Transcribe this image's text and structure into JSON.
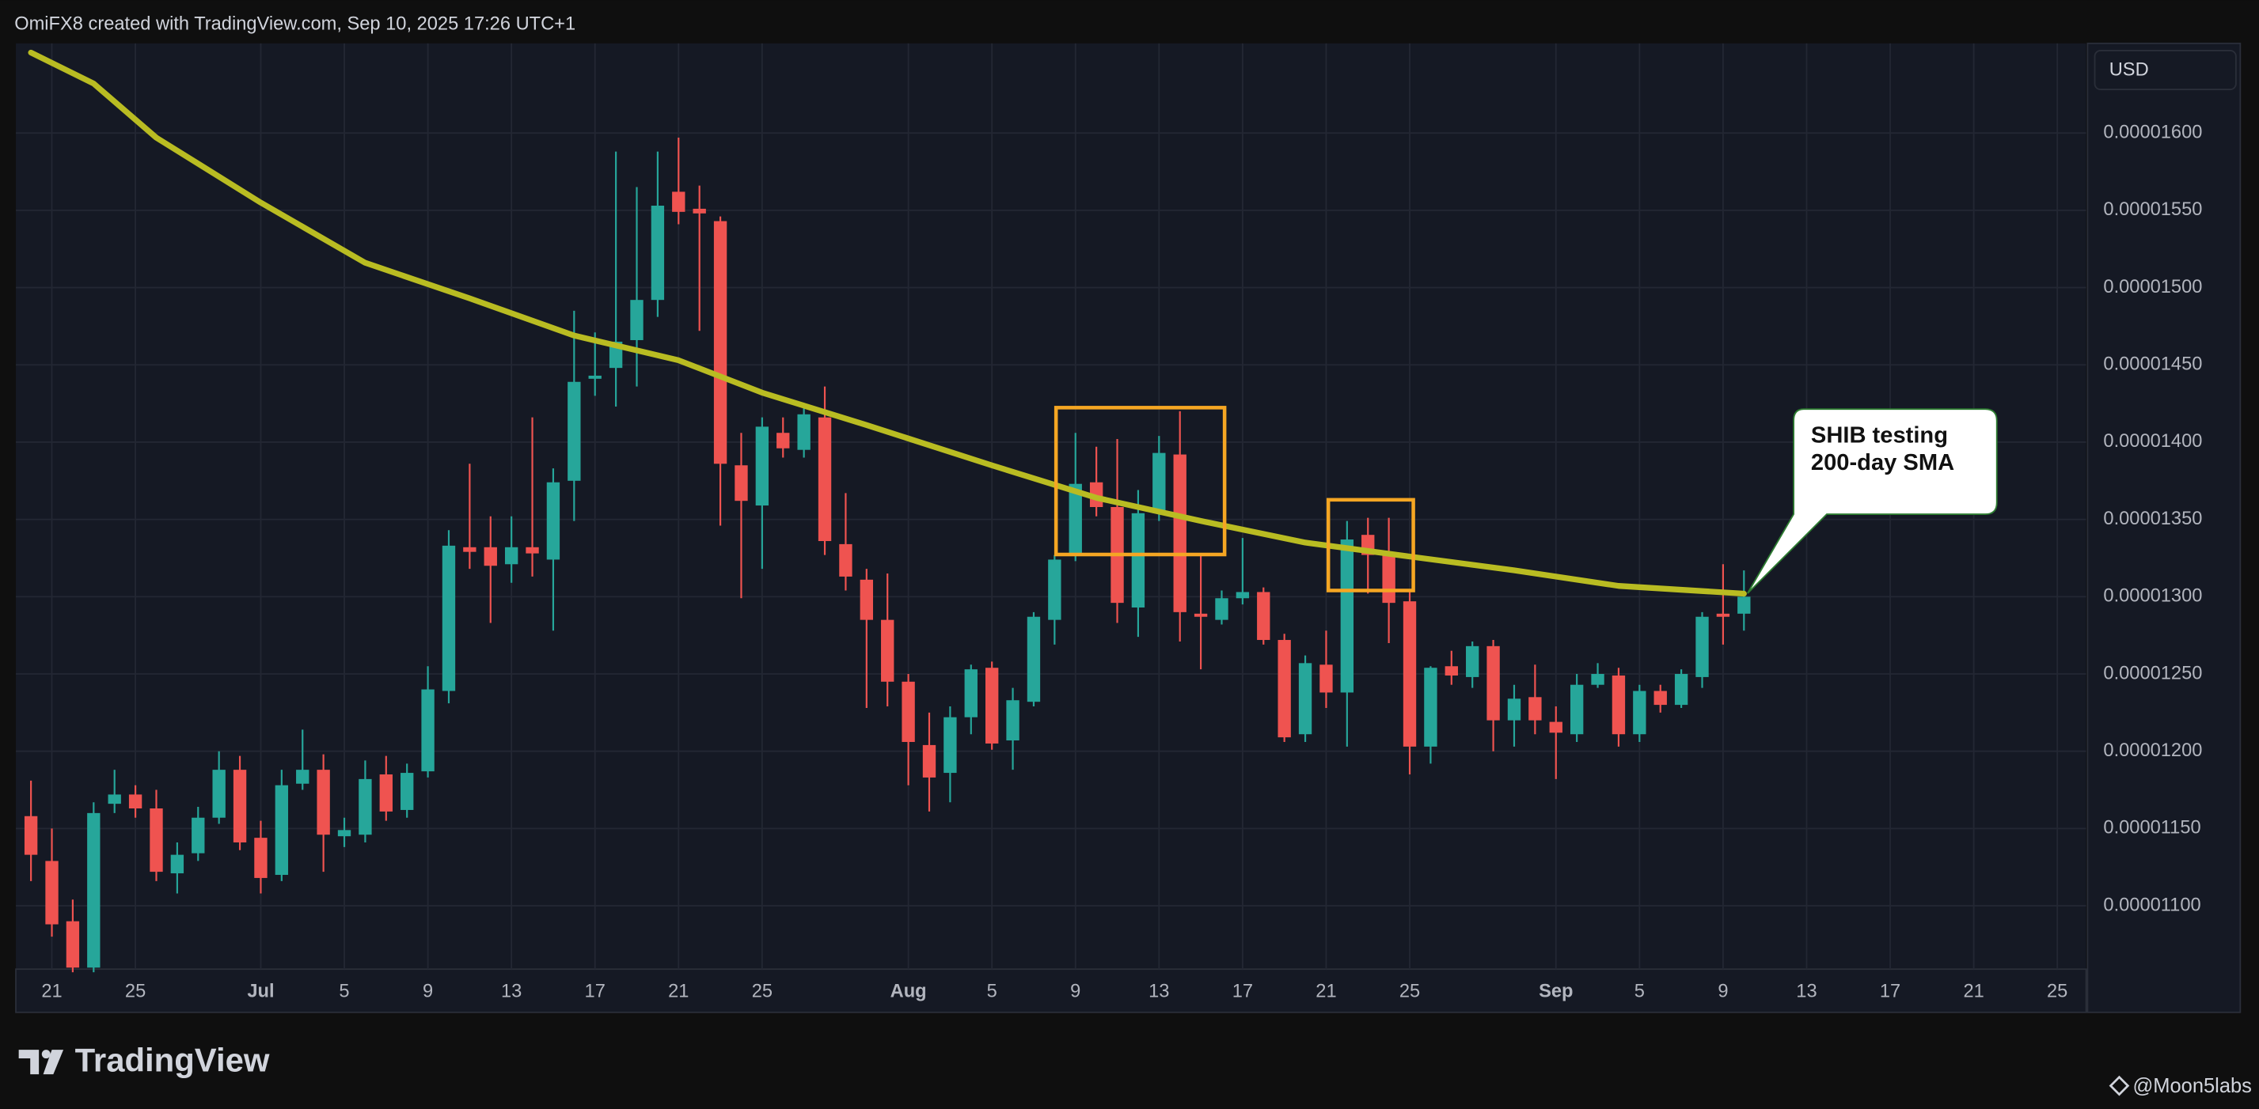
{
  "header": "OmiFX8 created with TradingView.com, Sep 10, 2025 17:26 UTC+1",
  "currency": "USD",
  "logo": "TradingView",
  "watermark": "@Moon5labs",
  "chart_data": {
    "type": "candlestick",
    "up_color": "#26a69a",
    "down_color": "#ef5350",
    "grid": true,
    "xlim": [
      "2025-06-19",
      "2025-09-26"
    ],
    "ylim": [
      1.059e-05,
      1.658e-05
    ],
    "yticks": [
      {
        "value": 1.1e-05,
        "label": "0.00001100"
      },
      {
        "value": 1.15e-05,
        "label": "0.00001150"
      },
      {
        "value": 1.2e-05,
        "label": "0.00001200"
      },
      {
        "value": 1.25e-05,
        "label": "0.00001250"
      },
      {
        "value": 1.3e-05,
        "label": "0.00001300"
      },
      {
        "value": 1.35e-05,
        "label": "0.00001350"
      },
      {
        "value": 1.4e-05,
        "label": "0.00001400"
      },
      {
        "value": 1.45e-05,
        "label": "0.00001450"
      },
      {
        "value": 1.5e-05,
        "label": "0.00001500"
      },
      {
        "value": 1.55e-05,
        "label": "0.00001550"
      },
      {
        "value": 1.6e-05,
        "label": "0.00001600"
      }
    ],
    "xticks": [
      {
        "value": "2025-06-21",
        "label": "21"
      },
      {
        "value": "2025-06-25",
        "label": "25"
      },
      {
        "value": "2025-07-01",
        "label": "Jul"
      },
      {
        "value": "2025-07-05",
        "label": "5"
      },
      {
        "value": "2025-07-09",
        "label": "9"
      },
      {
        "value": "2025-07-13",
        "label": "13"
      },
      {
        "value": "2025-07-17",
        "label": "17"
      },
      {
        "value": "2025-07-21",
        "label": "21"
      },
      {
        "value": "2025-07-25",
        "label": "25"
      },
      {
        "value": "2025-08-01",
        "label": "Aug"
      },
      {
        "value": "2025-08-05",
        "label": "5"
      },
      {
        "value": "2025-08-09",
        "label": "9"
      },
      {
        "value": "2025-08-13",
        "label": "13"
      },
      {
        "value": "2025-08-17",
        "label": "17"
      },
      {
        "value": "2025-08-21",
        "label": "21"
      },
      {
        "value": "2025-08-25",
        "label": "25"
      },
      {
        "value": "2025-09-01",
        "label": "Sep"
      },
      {
        "value": "2025-09-05",
        "label": "5"
      },
      {
        "value": "2025-09-09",
        "label": "9"
      },
      {
        "value": "2025-09-13",
        "label": "13"
      },
      {
        "value": "2025-09-17",
        "label": "17"
      },
      {
        "value": "2025-09-21",
        "label": "21"
      },
      {
        "value": "2025-09-25",
        "label": "25"
      }
    ],
    "candles": {
      "x": [
        "2025-06-20",
        "2025-06-21",
        "2025-06-22",
        "2025-06-23",
        "2025-06-24",
        "2025-06-25",
        "2025-06-26",
        "2025-06-27",
        "2025-06-28",
        "2025-06-29",
        "2025-06-30",
        "2025-07-01",
        "2025-07-02",
        "2025-07-03",
        "2025-07-04",
        "2025-07-05",
        "2025-07-06",
        "2025-07-07",
        "2025-07-08",
        "2025-07-09",
        "2025-07-10",
        "2025-07-11",
        "2025-07-12",
        "2025-07-13",
        "2025-07-14",
        "2025-07-15",
        "2025-07-16",
        "2025-07-17",
        "2025-07-18",
        "2025-07-19",
        "2025-07-20",
        "2025-07-21",
        "2025-07-22",
        "2025-07-23",
        "2025-07-24",
        "2025-07-25",
        "2025-07-26",
        "2025-07-27",
        "2025-07-28",
        "2025-07-29",
        "2025-07-30",
        "2025-07-31",
        "2025-08-01",
        "2025-08-02",
        "2025-08-03",
        "2025-08-04",
        "2025-08-05",
        "2025-08-06",
        "2025-08-07",
        "2025-08-08",
        "2025-08-09",
        "2025-08-10",
        "2025-08-11",
        "2025-08-12",
        "2025-08-13",
        "2025-08-14",
        "2025-08-15",
        "2025-08-16",
        "2025-08-17",
        "2025-08-18",
        "2025-08-19",
        "2025-08-20",
        "2025-08-21",
        "2025-08-22",
        "2025-08-23",
        "2025-08-24",
        "2025-08-25",
        "2025-08-26",
        "2025-08-27",
        "2025-08-28",
        "2025-08-29",
        "2025-08-30",
        "2025-08-31",
        "2025-09-01",
        "2025-09-02",
        "2025-09-03",
        "2025-09-04",
        "2025-09-05",
        "2025-09-06",
        "2025-09-07",
        "2025-09-08",
        "2025-09-09",
        "2025-09-10"
      ],
      "open": [
        1.158e-05,
        1.129e-05,
        1.09e-05,
        1.06e-05,
        1.166e-05,
        1.172e-05,
        1.163e-05,
        1.121e-05,
        1.134e-05,
        1.157e-05,
        1.188e-05,
        1.144e-05,
        1.12e-05,
        1.179e-05,
        1.188e-05,
        1.145e-05,
        1.146e-05,
        1.185e-05,
        1.162e-05,
        1.187e-05,
        1.239e-05,
        1.332e-05,
        1.332e-05,
        1.321e-05,
        1.332e-05,
        1.324e-05,
        1.375e-05,
        1.441e-05,
        1.448e-05,
        1.466e-05,
        1.492e-05,
        1.562e-05,
        1.551e-05,
        1.543e-05,
        1.385e-05,
        1.359e-05,
        1.406e-05,
        1.395e-05,
        1.416e-05,
        1.334e-05,
        1.311e-05,
        1.285e-05,
        1.245e-05,
        1.204e-05,
        1.186e-05,
        1.222e-05,
        1.254e-05,
        1.207e-05,
        1.232e-05,
        1.285e-05,
        1.327e-05,
        1.374e-05,
        1.358e-05,
        1.293e-05,
        1.354e-05,
        1.392e-05,
        1.289e-05,
        1.285e-05,
        1.299e-05,
        1.303e-05,
        1.272e-05,
        1.211e-05,
        1.256e-05,
        1.238e-05,
        1.34e-05,
        1.329e-05,
        1.297e-05,
        1.203e-05,
        1.255e-05,
        1.248e-05,
        1.268e-05,
        1.22e-05,
        1.235e-05,
        1.219e-05,
        1.211e-05,
        1.243e-05,
        1.249e-05,
        1.211e-05,
        1.239e-05,
        1.23e-05,
        1.248e-05,
        1.289e-05,
        1.289e-05
      ],
      "high": [
        1.181e-05,
        1.15e-05,
        1.104e-05,
        1.167e-05,
        1.188e-05,
        1.178e-05,
        1.175e-05,
        1.141e-05,
        1.164e-05,
        1.2e-05,
        1.197e-05,
        1.155e-05,
        1.188e-05,
        1.214e-05,
        1.198e-05,
        1.157e-05,
        1.194e-05,
        1.197e-05,
        1.192e-05,
        1.255e-05,
        1.343e-05,
        1.386e-05,
        1.352e-05,
        1.352e-05,
        1.416e-05,
        1.383e-05,
        1.485e-05,
        1.471e-05,
        1.588e-05,
        1.565e-05,
        1.588e-05,
        1.597e-05,
        1.566e-05,
        1.546e-05,
        1.406e-05,
        1.416e-05,
        1.416e-05,
        1.425e-05,
        1.436e-05,
        1.367e-05,
        1.318e-05,
        1.315e-05,
        1.25e-05,
        1.225e-05,
        1.229e-05,
        1.256e-05,
        1.258e-05,
        1.241e-05,
        1.29e-05,
        1.327e-05,
        1.406e-05,
        1.397e-05,
        1.402e-05,
        1.369e-05,
        1.404e-05,
        1.42e-05,
        1.327e-05,
        1.304e-05,
        1.338e-05,
        1.306e-05,
        1.276e-05,
        1.262e-05,
        1.278e-05,
        1.349e-05,
        1.351e-05,
        1.351e-05,
        1.304e-05,
        1.255e-05,
        1.265e-05,
        1.271e-05,
        1.272e-05,
        1.243e-05,
        1.256e-05,
        1.229e-05,
        1.25e-05,
        1.257e-05,
        1.254e-05,
        1.243e-05,
        1.243e-05,
        1.253e-05,
        1.29e-05,
        1.321e-05,
        1.317e-05
      ],
      "low": [
        1.116e-05,
        1.08e-05,
        1.057e-05,
        1.057e-05,
        1.16e-05,
        1.157e-05,
        1.116e-05,
        1.108e-05,
        1.129e-05,
        1.153e-05,
        1.136e-05,
        1.108e-05,
        1.116e-05,
        1.175e-05,
        1.122e-05,
        1.138e-05,
        1.141e-05,
        1.155e-05,
        1.157e-05,
        1.183e-05,
        1.231e-05,
        1.318e-05,
        1.283e-05,
        1.309e-05,
        1.313e-05,
        1.278e-05,
        1.349e-05,
        1.43e-05,
        1.423e-05,
        1.436e-05,
        1.481e-05,
        1.541e-05,
        1.472e-05,
        1.346e-05,
        1.299e-05,
        1.318e-05,
        1.39e-05,
        1.39e-05,
        1.327e-05,
        1.304e-05,
        1.228e-05,
        1.229e-05,
        1.178e-05,
        1.161e-05,
        1.167e-05,
        1.211e-05,
        1.201e-05,
        1.188e-05,
        1.229e-05,
        1.269e-05,
        1.323e-05,
        1.352e-05,
        1.283e-05,
        1.274e-05,
        1.349e-05,
        1.271e-05,
        1.253e-05,
        1.282e-05,
        1.295e-05,
        1.269e-05,
        1.206e-05,
        1.206e-05,
        1.228e-05,
        1.203e-05,
        1.302e-05,
        1.27e-05,
        1.185e-05,
        1.192e-05,
        1.243e-05,
        1.241e-05,
        1.2e-05,
        1.203e-05,
        1.211e-05,
        1.182e-05,
        1.206e-05,
        1.241e-05,
        1.203e-05,
        1.206e-05,
        1.225e-05,
        1.228e-05,
        1.241e-05,
        1.269e-05,
        1.278e-05
      ],
      "close": [
        1.133e-05,
        1.088e-05,
        1.06e-05,
        1.16e-05,
        1.172e-05,
        1.163e-05,
        1.122e-05,
        1.133e-05,
        1.157e-05,
        1.188e-05,
        1.141e-05,
        1.118e-05,
        1.178e-05,
        1.188e-05,
        1.146e-05,
        1.149e-05,
        1.182e-05,
        1.161e-05,
        1.186e-05,
        1.24e-05,
        1.333e-05,
        1.329e-05,
        1.32e-05,
        1.332e-05,
        1.328e-05,
        1.374e-05,
        1.439e-05,
        1.443e-05,
        1.465e-05,
        1.492e-05,
        1.553e-05,
        1.549e-05,
        1.548e-05,
        1.386e-05,
        1.362e-05,
        1.41e-05,
        1.396e-05,
        1.418e-05,
        1.336e-05,
        1.313e-05,
        1.285e-05,
        1.245e-05,
        1.206e-05,
        1.183e-05,
        1.222e-05,
        1.253e-05,
        1.205e-05,
        1.233e-05,
        1.287e-05,
        1.324e-05,
        1.373e-05,
        1.358e-05,
        1.296e-05,
        1.354e-05,
        1.393e-05,
        1.29e-05,
        1.287e-05,
        1.299e-05,
        1.303e-05,
        1.272e-05,
        1.209e-05,
        1.257e-05,
        1.238e-05,
        1.337e-05,
        1.327e-05,
        1.296e-05,
        1.203e-05,
        1.254e-05,
        1.249e-05,
        1.268e-05,
        1.22e-05,
        1.234e-05,
        1.22e-05,
        1.212e-05,
        1.243e-05,
        1.25e-05,
        1.211e-05,
        1.239e-05,
        1.23e-05,
        1.25e-05,
        1.287e-05,
        1.287e-05,
        1.3e-05
      ]
    },
    "sma": {
      "color": "#b9bc22",
      "x": [
        "2025-06-20",
        "2025-06-23",
        "2025-06-26",
        "2025-07-01",
        "2025-07-06",
        "2025-07-11",
        "2025-07-16",
        "2025-07-21",
        "2025-07-25",
        "2025-07-30",
        "2025-08-05",
        "2025-08-10",
        "2025-08-15",
        "2025-08-20",
        "2025-08-25",
        "2025-08-30",
        "2025-09-04",
        "2025-09-10"
      ],
      "values": [
        1.652e-05,
        1.632e-05,
        1.597e-05,
        1.555e-05,
        1.516e-05,
        1.493e-05,
        1.469e-05,
        1.453e-05,
        1.432e-05,
        1.411e-05,
        1.385e-05,
        1.364e-05,
        1.349e-05,
        1.335e-05,
        1.326e-05,
        1.317e-05,
        1.307e-05,
        1.302e-05
      ]
    },
    "annotation": [
      "SHIB testing",
      "200-day SMA"
    ]
  }
}
